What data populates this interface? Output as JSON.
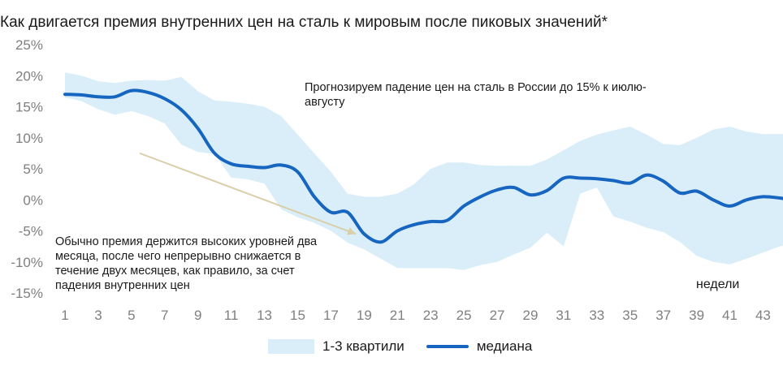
{
  "chart_data": {
    "type": "area",
    "title": "Как двигается премия внутренних цен на сталь к мировым после пиковых значений*",
    "xlabel": "недели",
    "ylabel": "",
    "ylim": [
      -15,
      25
    ],
    "ytick_labels": [
      "25%",
      "20%",
      "15%",
      "10%",
      "5%",
      "0%",
      "-5%",
      "-10%",
      "-15%"
    ],
    "ytick_values": [
      25,
      20,
      15,
      10,
      5,
      0,
      -5,
      -10,
      -15
    ],
    "xtick_labels": [
      "1",
      "3",
      "5",
      "7",
      "9",
      "11",
      "13",
      "15",
      "17",
      "19",
      "21",
      "23",
      "25",
      "27",
      "29",
      "31",
      "33",
      "35",
      "37",
      "39",
      "41",
      "43"
    ],
    "xtick_values": [
      1,
      3,
      5,
      7,
      9,
      11,
      13,
      15,
      17,
      19,
      21,
      23,
      25,
      27,
      29,
      31,
      33,
      35,
      37,
      39,
      41,
      43
    ],
    "xlim": [
      1,
      44.2
    ],
    "grid": false,
    "legend_position": "bottom",
    "x": [
      1,
      2,
      3,
      4,
      5,
      6,
      7,
      8,
      9,
      10,
      11,
      12,
      13,
      14,
      15,
      16,
      17,
      18,
      19,
      20,
      21,
      22,
      23,
      24,
      25,
      26,
      27,
      28,
      29,
      30,
      31,
      32,
      33,
      34,
      35,
      36,
      37,
      38,
      39,
      40,
      41,
      42,
      43,
      44,
      44.2
    ],
    "series": [
      {
        "name": "медиана",
        "kind": "line",
        "color": "#1665c0",
        "values": [
          17.0,
          16.9,
          16.6,
          16.6,
          17.6,
          17.3,
          16.3,
          14.5,
          11.5,
          7.5,
          5.8,
          5.4,
          5.2,
          5.6,
          4.5,
          0.5,
          -2.0,
          -2.0,
          -5.5,
          -6.8,
          -5.0,
          -4.0,
          -3.5,
          -3.3,
          -1.0,
          0.5,
          1.6,
          2.0,
          0.8,
          1.5,
          3.5,
          3.5,
          3.4,
          3.1,
          2.7,
          4.0,
          3.0,
          1.1,
          1.4,
          0.0,
          -1.0,
          0.0,
          0.5,
          0.3,
          0.2
        ]
      },
      {
        "name": "1-3 квартили",
        "kind": "band",
        "color": "#daeef9",
        "upper": [
          20.5,
          20.0,
          19.1,
          18.8,
          19.2,
          19.3,
          19.2,
          19.8,
          17.5,
          16.0,
          15.8,
          15.5,
          15.0,
          13.5,
          10.5,
          7.5,
          4.5,
          1.0,
          0.5,
          0.5,
          1.0,
          2.5,
          5.0,
          6.0,
          6.0,
          5.6,
          5.5,
          5.5,
          5.5,
          6.5,
          8.0,
          9.5,
          10.5,
          11.2,
          11.8,
          10.5,
          9.0,
          8.8,
          10.0,
          11.3,
          11.8,
          11.0,
          10.6,
          10.6,
          10.6
        ],
        "lower": [
          16.5,
          15.9,
          14.6,
          13.7,
          14.3,
          13.5,
          12.3,
          8.9,
          7.7,
          7.4,
          3.6,
          3.3,
          2.6,
          -1.5,
          -2.8,
          -3.7,
          -5.0,
          -6.9,
          -8.0,
          -9.5,
          -11.0,
          -11.0,
          -11.0,
          -11.0,
          -11.3,
          -10.5,
          -10.0,
          -8.8,
          -7.7,
          -5.3,
          -7.5,
          1.0,
          2.0,
          -2.7,
          -3.5,
          -4.5,
          -5.2,
          -6.8,
          -9.0,
          -10.0,
          -10.4,
          -9.5,
          -8.5,
          -7.5,
          -7.4
        ]
      }
    ],
    "annotations": [
      {
        "id": "forecast",
        "text": "Прогнозируем падение цен на сталь в России до 15% к июлю-августу"
      },
      {
        "id": "usual",
        "text": "Обычно премия держится высоких уровней два месяца, после чего непрерывно снижается в течение двух месяцев, как правило, за счет падения внутренних цен"
      }
    ],
    "arrow": {
      "from": [
        5.5,
        7.5
      ],
      "to": [
        18.5,
        -5.5
      ],
      "color": "#d9cfa8"
    }
  },
  "legend": {
    "band_label": "1-3 квартили",
    "line_label": "медиана"
  }
}
